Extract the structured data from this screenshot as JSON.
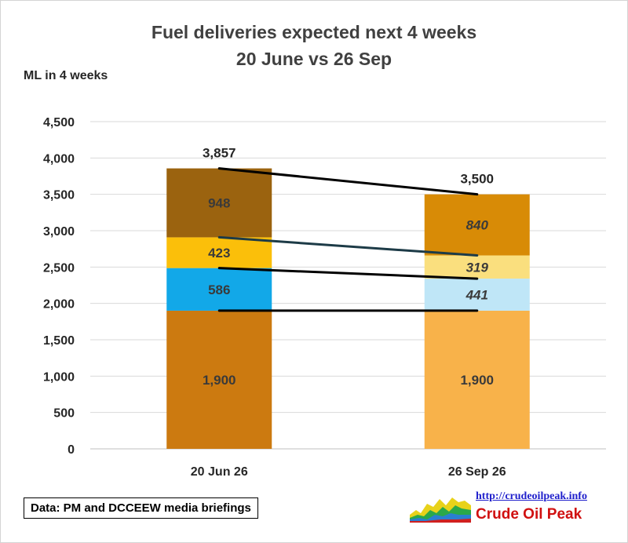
{
  "chart_data": {
    "type": "bar",
    "stacked": true,
    "title": "Fuel deliveries expected next 4 weeks",
    "subtitle": "20 June vs 26 Sep",
    "ylabel": "ML in 4 weeks",
    "ylim": [
      0,
      4500
    ],
    "ytick_step": 500,
    "yticks": [
      "0",
      "500",
      "1,000",
      "1,500",
      "2,000",
      "2,500",
      "3,000",
      "3,500",
      "4,000",
      "4,500"
    ],
    "grid": true,
    "categories": [
      "20 Jun 26",
      "26 Sep 26"
    ],
    "series": [
      {
        "values": [
          1900,
          1900
        ],
        "labels": [
          "1,900",
          "1,900"
        ],
        "colors": [
          "#cc7a10",
          "#f8b24a"
        ]
      },
      {
        "values": [
          586,
          441
        ],
        "labels": [
          "586",
          "441"
        ],
        "colors": [
          "#12a8e8",
          "#bfe6f7"
        ]
      },
      {
        "values": [
          423,
          319
        ],
        "labels": [
          "423",
          "319"
        ],
        "colors": [
          "#fbbf0a",
          "#fadf7e"
        ]
      },
      {
        "values": [
          948,
          840
        ],
        "labels": [
          "948",
          "840"
        ],
        "colors": [
          "#9b630f",
          "#d88b06"
        ]
      }
    ],
    "totals": [
      "3,857",
      "3,500"
    ],
    "total_values": [
      3857,
      3500
    ],
    "italic_labels_category": 1,
    "connectors": [
      {
        "values": [
          1900,
          1900
        ],
        "color": "#000000"
      },
      {
        "values": [
          2486,
          2341
        ],
        "color": "#000000"
      },
      {
        "values": [
          2909,
          2660
        ],
        "color": "#1d3b47"
      },
      {
        "values": [
          3857,
          3500
        ],
        "color": "#000000"
      }
    ]
  },
  "source_note": "Data: PM and DCCEEW media briefings",
  "logo": {
    "url": "http://crudeoilpeak.info",
    "name": "Crude Oil Peak"
  }
}
